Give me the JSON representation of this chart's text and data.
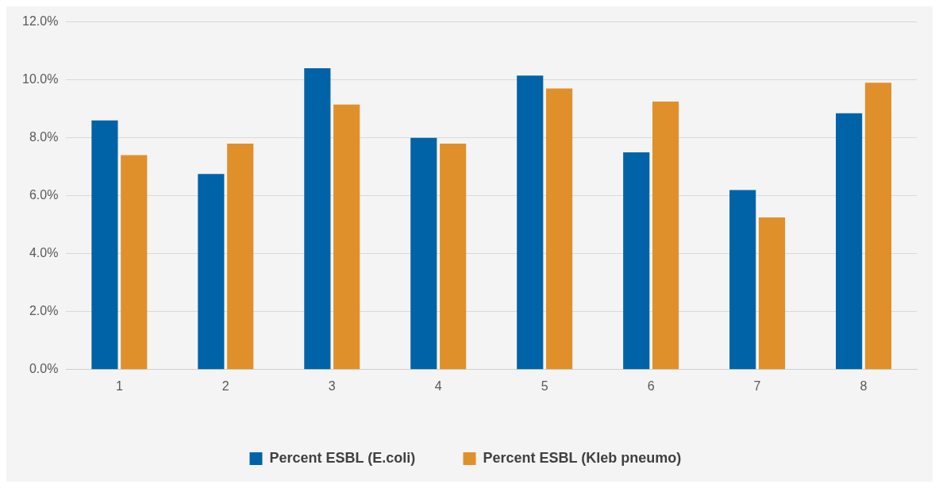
{
  "chart_data": {
    "type": "bar",
    "categories": [
      "1",
      "2",
      "3",
      "4",
      "5",
      "6",
      "7",
      "8"
    ],
    "series": [
      {
        "name": "Percent ESBL (E.coli)",
        "color": "#0063a7",
        "values": [
          8.6,
          6.75,
          10.4,
          8.0,
          10.15,
          7.5,
          6.2,
          8.85
        ]
      },
      {
        "name": "Percent ESBL (Kleb pneumo)",
        "color": "#e0902b",
        "values": [
          7.4,
          7.8,
          9.15,
          7.8,
          9.7,
          9.25,
          5.25,
          9.9
        ]
      }
    ],
    "ylim": [
      0,
      12
    ],
    "yticks": [
      {
        "value": 0,
        "label": "0.0%"
      },
      {
        "value": 2,
        "label": "2.0%"
      },
      {
        "value": 4,
        "label": "4.0%"
      },
      {
        "value": 6,
        "label": "6.0%"
      },
      {
        "value": 8,
        "label": "8.0%"
      },
      {
        "value": 10,
        "label": "10.0%"
      },
      {
        "value": 12,
        "label": "12.0%"
      }
    ],
    "grid": "y",
    "legend": "bottom"
  }
}
